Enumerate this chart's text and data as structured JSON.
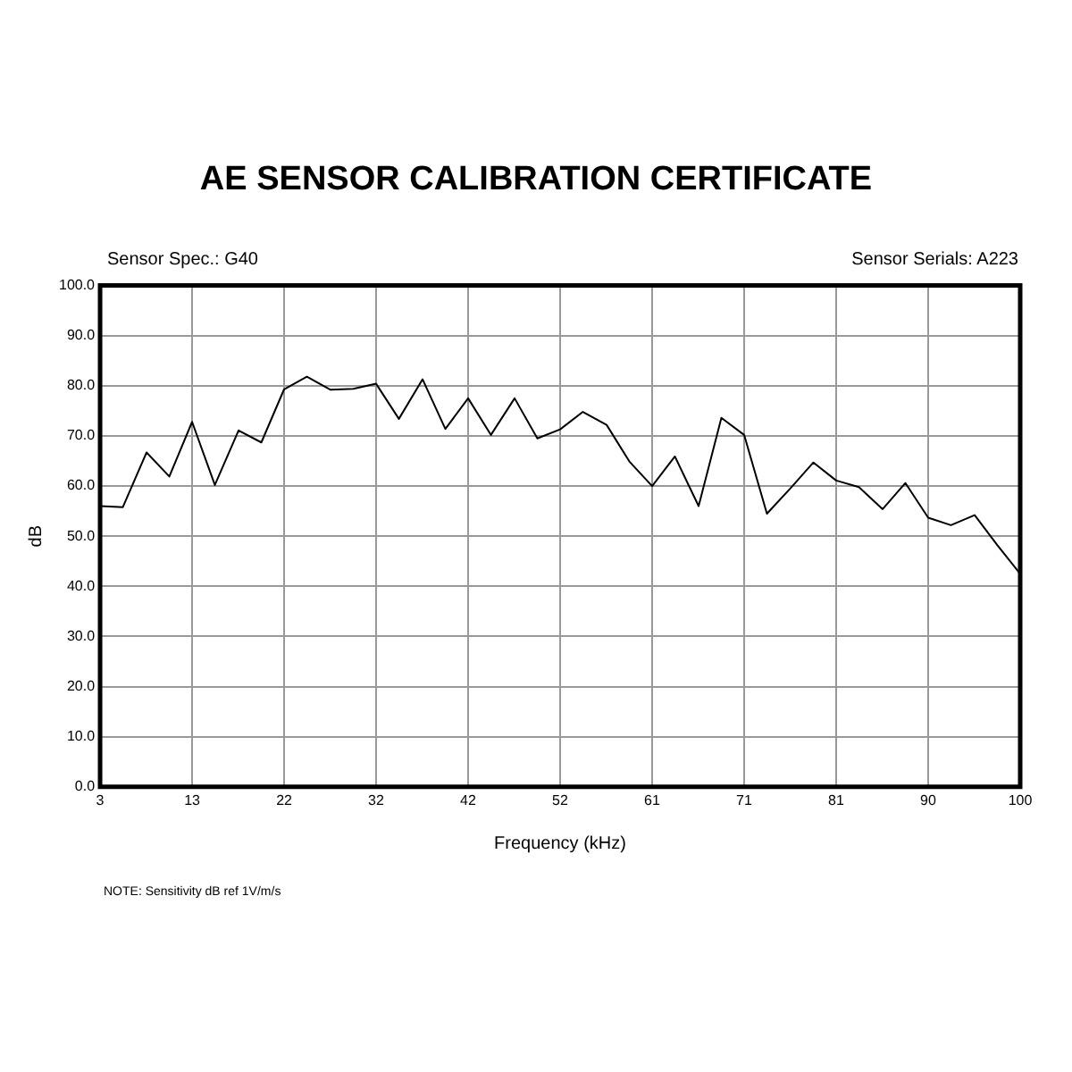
{
  "chart_data": {
    "type": "line",
    "title": "AE SENSOR CALIBRATION CERTIFICATE",
    "xlabel": "Frequency (kHz)",
    "ylabel": "dB",
    "annotations": [
      "Sensor Spec.: G40",
      "Sensor Serials: A223",
      "NOTE:  Sensitivity dB ref 1V/m/s"
    ],
    "x": [
      3.0,
      5.4,
      7.9,
      10.3,
      12.7,
      15.1,
      17.6,
      20.0,
      22.4,
      24.8,
      27.3,
      29.7,
      32.1,
      34.5,
      37.0,
      39.4,
      41.8,
      44.2,
      46.7,
      49.1,
      51.5,
      53.9,
      56.4,
      58.8,
      61.2,
      63.6,
      66.1,
      68.5,
      70.9,
      73.3,
      75.8,
      78.2,
      80.6,
      83.0,
      85.5,
      87.9,
      90.3,
      92.7,
      95.2,
      97.6,
      100.0
    ],
    "series": [
      {
        "color": "#000000",
        "values": [
          56.0,
          55.8,
          66.7,
          61.9,
          72.8,
          60.2,
          71.1,
          68.7,
          79.3,
          81.8,
          79.2,
          79.4,
          80.4,
          73.4,
          81.3,
          71.4,
          77.5,
          70.2,
          77.5,
          69.5,
          71.3,
          74.8,
          72.2,
          64.9,
          60.0,
          65.9,
          56.0,
          73.6,
          70.2,
          54.5,
          59.6,
          64.7,
          61.1,
          59.8,
          55.4,
          60.6,
          53.7,
          52.2,
          54.2,
          48.2,
          42.5
        ]
      }
    ],
    "xlim": [
      3,
      100
    ],
    "xticks": [
      {
        "value": 3,
        "label": "3"
      },
      {
        "value": 12.7,
        "label": "13"
      },
      {
        "value": 22.4,
        "label": "22"
      },
      {
        "value": 32.1,
        "label": "32"
      },
      {
        "value": 41.8,
        "label": "42"
      },
      {
        "value": 51.5,
        "label": "52"
      },
      {
        "value": 61.2,
        "label": "61"
      },
      {
        "value": 70.9,
        "label": "71"
      },
      {
        "value": 80.6,
        "label": "81"
      },
      {
        "value": 90.3,
        "label": "90"
      },
      {
        "value": 100,
        "label": "100"
      }
    ],
    "ylim": [
      0,
      100
    ],
    "yticks": [
      {
        "value": 0,
        "label": "0.0"
      },
      {
        "value": 10,
        "label": "10.0"
      },
      {
        "value": 20,
        "label": "20.0"
      },
      {
        "value": 30,
        "label": "30.0"
      },
      {
        "value": 40,
        "label": "40.0"
      },
      {
        "value": 50,
        "label": "50.0"
      },
      {
        "value": 60,
        "label": "60.0"
      },
      {
        "value": 70,
        "label": "70.0"
      },
      {
        "value": 80,
        "label": "80.0"
      },
      {
        "value": 90,
        "label": "90.0"
      },
      {
        "value": 100,
        "label": "100.0"
      }
    ],
    "grid": true
  }
}
